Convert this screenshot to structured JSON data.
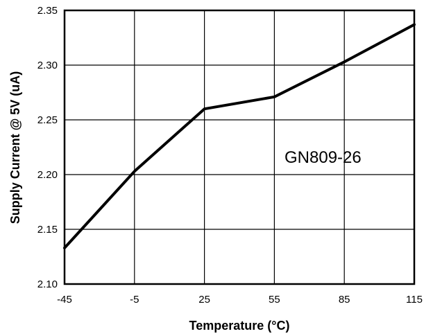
{
  "chart_data": {
    "type": "line",
    "x": [
      -45,
      -5,
      25,
      55,
      85,
      115
    ],
    "series": [
      {
        "values": [
          2.133,
          2.203,
          2.26,
          2.271,
          2.303,
          2.337
        ]
      }
    ],
    "xlabel": "Temperature (°C)",
    "ylabel": "Supply Current @ 5V (uA)",
    "x_tick_labels": [
      "-45",
      "-5",
      "25",
      "55",
      "85",
      "115"
    ],
    "y_ticks": [
      2.1,
      2.15,
      2.2,
      2.25,
      2.3,
      2.35
    ],
    "y_tick_labels": [
      "2.10",
      "2.15",
      "2.20",
      "2.25",
      "2.30",
      "2.35"
    ],
    "ylim": [
      2.1,
      2.35
    ],
    "grid": true,
    "annotation": "GN809-26",
    "line_color": "#000000"
  }
}
